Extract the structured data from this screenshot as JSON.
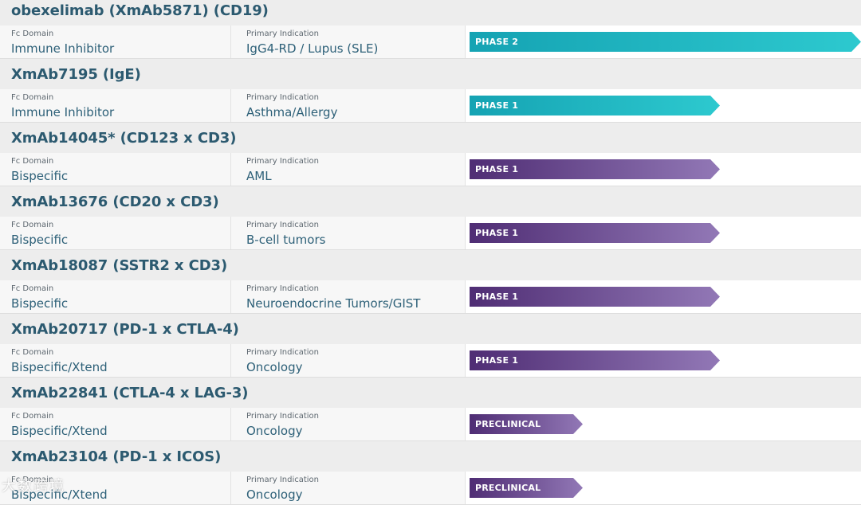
{
  "colors": {
    "title": "#2c5a70",
    "value": "#2d6078",
    "teal_start": "#15a3b3",
    "teal_end": "#2dc9cf",
    "purple_start": "#4f2d74",
    "purple_end": "#9278b6"
  },
  "items": [
    {
      "title": "obexelimab (XmAb5871) (CD19)",
      "domain_label": "Fc Domain",
      "domain": "Immune Inhibitor",
      "indication_label": "Primary Indication",
      "indication": "IgG4-RD / Lupus (SLE)",
      "phase": "PHASE 2",
      "progress": 1.0,
      "color": "teal"
    },
    {
      "title": "XmAb7195 (IgE)",
      "domain_label": "Fc Domain",
      "domain": "Immune Inhibitor",
      "indication_label": "Primary Indication",
      "indication": "Asthma/Allergy",
      "phase": "PHASE 1",
      "progress": 0.64,
      "color": "teal"
    },
    {
      "title": "XmAb14045* (CD123 x CD3)",
      "domain_label": "Fc Domain",
      "domain": "Bispecific",
      "indication_label": "Primary Indication",
      "indication": "AML",
      "phase": "PHASE 1",
      "progress": 0.64,
      "color": "purple"
    },
    {
      "title": "XmAb13676 (CD20 x CD3)",
      "domain_label": "Fc Domain",
      "domain": "Bispecific",
      "indication_label": "Primary Indication",
      "indication": "B-cell tumors",
      "phase": "PHASE 1",
      "progress": 0.64,
      "color": "purple"
    },
    {
      "title": "XmAb18087 (SSTR2 x CD3)",
      "domain_label": "Fc Domain",
      "domain": "Bispecific",
      "indication_label": "Primary Indication",
      "indication": "Neuroendocrine Tumors/GIST",
      "phase": "PHASE 1",
      "progress": 0.64,
      "color": "purple"
    },
    {
      "title": "XmAb20717 (PD-1 x CTLA-4)",
      "domain_label": "Fc Domain",
      "domain": "Bispecific/Xtend",
      "indication_label": "Primary Indication",
      "indication": "Oncology",
      "phase": "PHASE 1",
      "progress": 0.64,
      "color": "purple"
    },
    {
      "title": "XmAb22841 (CTLA-4 x LAG-3)",
      "domain_label": "Fc Domain",
      "domain": "Bispecific/Xtend",
      "indication_label": "Primary Indication",
      "indication": "Oncology",
      "phase": "PRECLINICAL",
      "progress": 0.29,
      "color": "purple"
    },
    {
      "title": "XmAb23104 (PD-1 x ICOS)",
      "domain_label": "Fc Domain",
      "domain": "Bispecific/Xtend",
      "indication_label": "Primary Indication",
      "indication": "Oncology",
      "phase": "PRECLINICAL",
      "progress": 0.29,
      "color": "purple"
    }
  ],
  "watermark": "大数跨境"
}
